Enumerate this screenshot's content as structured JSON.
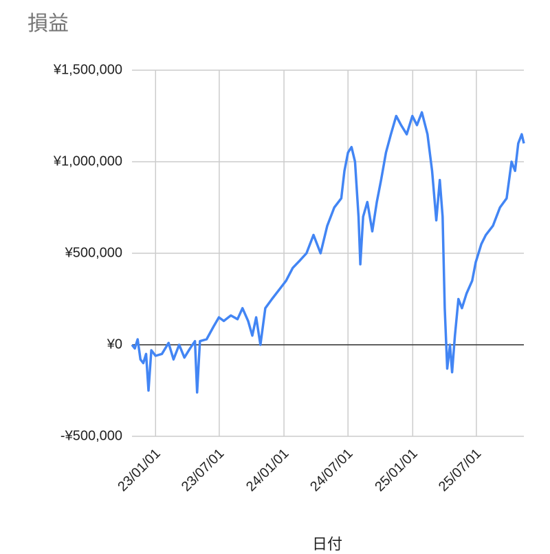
{
  "chart_data": {
    "type": "line",
    "title": "損益",
    "x_label": "日付",
    "x": [
      "22/10/26",
      "22/11/03",
      "22/11/11",
      "22/11/19",
      "22/11/27",
      "22/12/05",
      "22/12/12",
      "22/12/20",
      "23/01/01",
      "23/01/19",
      "23/02/07",
      "23/02/21",
      "23/03/09",
      "23/03/24",
      "23/04/09",
      "23/04/23",
      "23/04/29",
      "23/05/07",
      "23/05/26",
      "23/06/15",
      "23/06/30",
      "23/07/14",
      "23/08/03",
      "23/08/22",
      "23/09/05",
      "23/09/21",
      "23/10/03",
      "23/10/14",
      "23/10/26",
      "23/11/09",
      "23/11/28",
      "23/12/18",
      "24/01/07",
      "24/01/26",
      "24/02/15",
      "24/03/05",
      "24/03/25",
      "24/04/14",
      "24/05/03",
      "24/05/23",
      "24/06/12",
      "24/06/21",
      "24/07/01",
      "24/07/11",
      "24/07/21",
      "24/07/31",
      "24/08/05",
      "24/08/13",
      "24/08/25",
      "24/09/08",
      "24/09/21",
      "24/10/03",
      "24/10/17",
      "24/10/31",
      "24/11/15",
      "24/11/29",
      "24/12/15",
      "24/12/31",
      "25/01/13",
      "25/01/27",
      "25/02/12",
      "25/02/25",
      "25/03/09",
      "25/03/19",
      "25/03/27",
      "25/04/02",
      "25/04/09",
      "25/04/17",
      "25/04/23",
      "25/05/01",
      "25/05/11",
      "25/05/21",
      "25/06/03",
      "25/06/19",
      "25/06/29",
      "25/07/15",
      "25/07/28",
      "25/08/17",
      "25/09/06",
      "25/09/25",
      "25/10/09",
      "25/10/19",
      "25/10/28",
      "25/11/07",
      "25/11/13"
    ],
    "series": [
      {
        "name": "損益",
        "color": "#4285f4",
        "values": [
          0,
          -20000,
          30000,
          -80000,
          -100000,
          -50000,
          -250000,
          -30000,
          -60000,
          -50000,
          10000,
          -80000,
          0,
          -70000,
          -20000,
          20000,
          -260000,
          20000,
          30000,
          100000,
          150000,
          130000,
          160000,
          140000,
          200000,
          130000,
          50000,
          150000,
          0,
          200000,
          250000,
          300000,
          350000,
          420000,
          460000,
          500000,
          600000,
          500000,
          650000,
          750000,
          800000,
          950000,
          1050000,
          1080000,
          1000000,
          700000,
          440000,
          700000,
          780000,
          620000,
          780000,
          900000,
          1050000,
          1150000,
          1250000,
          1200000,
          1150000,
          1250000,
          1200000,
          1270000,
          1150000,
          950000,
          680000,
          900000,
          700000,
          200000,
          -130000,
          0,
          -150000,
          50000,
          250000,
          200000,
          280000,
          350000,
          450000,
          550000,
          600000,
          650000,
          750000,
          800000,
          1000000,
          950000,
          1100000,
          1150000,
          1100000
        ]
      }
    ],
    "xlim": [
      "22/10/26",
      "25/11/13"
    ],
    "xticks": [
      "23/01/01",
      "23/07/01",
      "24/01/01",
      "24/07/01",
      "25/01/01",
      "25/07/01"
    ],
    "ylim": [
      -500000,
      1500000
    ],
    "yticks": [
      {
        "value": -500000,
        "label": "-¥500,000"
      },
      {
        "value": 0,
        "label": "¥0"
      },
      {
        "value": 500000,
        "label": "¥500,000"
      },
      {
        "value": 1000000,
        "label": "¥1,000,000"
      },
      {
        "value": 1500000,
        "label": "¥1,500,000"
      }
    ],
    "grid": true
  }
}
